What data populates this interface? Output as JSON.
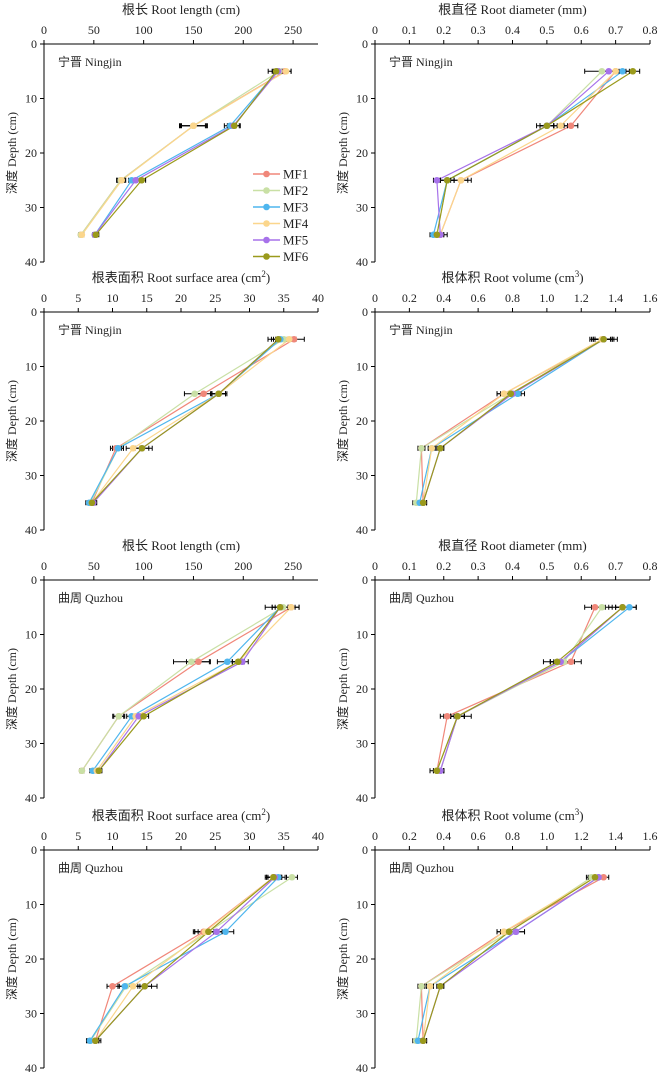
{
  "chart_data": [
    {
      "type": "line",
      "panel": "top-left",
      "site": "宁晋 Ningjin",
      "title": "根长 Root length (cm)",
      "xlabel": "根长 Root length (cm)",
      "ylabel": "深度 Depth (cm)",
      "xlim": [
        0,
        275
      ],
      "xticks": [
        "0",
        "50",
        "100",
        "150",
        "200",
        "250"
      ],
      "xtick_values": [
        0,
        50,
        100,
        150,
        200,
        250
      ],
      "ylim": [
        0,
        40
      ],
      "yticks": [
        "0",
        "10",
        "20",
        "30",
        "40"
      ],
      "ytick_values": [
        0,
        10,
        20,
        30,
        40
      ],
      "depth": [
        5,
        15,
        25,
        35
      ],
      "legend": "right",
      "series": [
        {
          "name": "MF1",
          "values": [
            242,
            150,
            77,
            37
          ],
          "err": [
            6,
            14,
            4,
            2
          ]
        },
        {
          "name": "MF2",
          "values": [
            236,
            150,
            77,
            37
          ],
          "err": [
            5,
            13,
            4,
            2
          ]
        },
        {
          "name": "MF3",
          "values": [
            234,
            187,
            88,
            51
          ],
          "err": [
            5,
            6,
            3,
            2
          ]
        },
        {
          "name": "MF4",
          "values": [
            243,
            150,
            78,
            38
          ],
          "err": [
            5,
            12,
            4,
            2
          ]
        },
        {
          "name": "MF5",
          "values": [
            235,
            190,
            92,
            51
          ],
          "err": [
            5,
            6,
            4,
            2
          ]
        },
        {
          "name": "MF6",
          "values": [
            233,
            191,
            98,
            52
          ],
          "err": [
            8,
            6,
            4,
            3
          ]
        }
      ]
    },
    {
      "type": "line",
      "panel": "top-right",
      "site": "宁晋 Ningjin",
      "title": "根直径 Root diameter (mm)",
      "xlabel": "根直径 Root diameter (mm)",
      "ylabel": "深度 Depth (cm)",
      "xlim": [
        0,
        0.8
      ],
      "xticks": [
        "0",
        "0.1",
        "0.2",
        "0.3",
        "0.4",
        "0.5",
        "0.6",
        "0.7",
        "0.8"
      ],
      "xtick_values": [
        0,
        0.1,
        0.2,
        0.3,
        0.4,
        0.5,
        0.6,
        0.7,
        0.8
      ],
      "ylim": [
        0,
        40
      ],
      "yticks": [
        "0",
        "10",
        "20",
        "30",
        "40"
      ],
      "ytick_values": [
        0,
        10,
        20,
        30,
        40
      ],
      "depth": [
        5,
        15,
        25,
        35
      ],
      "series": [
        {
          "name": "MF1",
          "values": [
            0.7,
            0.57,
            0.25,
            0.19
          ],
          "err": [
            0.02,
            0.02,
            0.02,
            0.01
          ]
        },
        {
          "name": "MF2",
          "values": [
            0.66,
            0.5,
            0.21,
            0.18
          ],
          "err": [
            0.05,
            0.02,
            0.02,
            0.01
          ]
        },
        {
          "name": "MF3",
          "values": [
            0.72,
            0.5,
            0.21,
            0.17
          ],
          "err": [
            0.02,
            0.02,
            0.02,
            0.01
          ]
        },
        {
          "name": "MF4",
          "values": [
            0.7,
            0.54,
            0.25,
            0.19
          ],
          "err": [
            0.02,
            0.02,
            0.03,
            0.01
          ]
        },
        {
          "name": "MF5",
          "values": [
            0.68,
            0.5,
            0.18,
            0.19
          ],
          "err": [
            0.02,
            0.02,
            0.01,
            0.02
          ]
        },
        {
          "name": "MF6",
          "values": [
            0.75,
            0.5,
            0.21,
            0.18
          ],
          "err": [
            0.02,
            0.03,
            0.02,
            0.01
          ]
        }
      ]
    },
    {
      "type": "line",
      "panel": "row2-left",
      "site": "宁晋 Ningjin",
      "title": "根表面积 Root surface area (cm²)",
      "xlabel": "根表面积 Root surface area (cm²)",
      "ylabel": "深度 Depth (cm)",
      "xlim": [
        0,
        40
      ],
      "xticks": [
        "0",
        "5",
        "10",
        "15",
        "20",
        "25",
        "30",
        "35",
        "40"
      ],
      "xtick_values": [
        0,
        5,
        10,
        15,
        20,
        25,
        30,
        35,
        40
      ],
      "ylim": [
        0,
        40
      ],
      "yticks": [
        "0",
        "10",
        "20",
        "30",
        "40"
      ],
      "ytick_values": [
        0,
        10,
        20,
        30,
        40
      ],
      "depth": [
        5,
        15,
        25,
        35
      ],
      "series": [
        {
          "name": "MF1",
          "values": [
            36.5,
            23.3,
            10.5,
            7.0
          ],
          "err": [
            1.5,
            1.2,
            0.8,
            0.5
          ]
        },
        {
          "name": "MF2",
          "values": [
            35.0,
            22.0,
            10.8,
            6.8
          ],
          "err": [
            1.2,
            1.5,
            0.8,
            0.5
          ]
        },
        {
          "name": "MF3",
          "values": [
            34.5,
            25.5,
            10.8,
            6.6
          ],
          "err": [
            1.0,
            1.0,
            0.8,
            0.5
          ]
        },
        {
          "name": "MF4",
          "values": [
            35.8,
            25.5,
            13.0,
            7.0
          ],
          "err": [
            1.0,
            1.0,
            1.0,
            0.5
          ]
        },
        {
          "name": "MF5",
          "values": [
            34.2,
            25.5,
            14.3,
            7.2
          ],
          "err": [
            1.0,
            1.0,
            1.0,
            0.5
          ]
        },
        {
          "name": "MF6",
          "values": [
            34.2,
            25.5,
            14.3,
            7.0
          ],
          "err": [
            1.5,
            1.2,
            1.5,
            0.6
          ]
        }
      ]
    },
    {
      "type": "line",
      "panel": "row2-right",
      "site": "宁晋 Ningjin",
      "title": "根体积 Root volume (cm³)",
      "xlabel": "根体积 Root volume (cm³)",
      "ylabel": "深度 Depth (cm)",
      "xlim": [
        0,
        1.6
      ],
      "xticks": [
        "0",
        "0.2",
        "0.4",
        "0.6",
        "0.8",
        "1.0",
        "1.2",
        "1.4",
        "1.6"
      ],
      "xtick_values": [
        0,
        0.2,
        0.4,
        0.6,
        0.8,
        1.0,
        1.2,
        1.4,
        1.6
      ],
      "ylim": [
        0,
        40
      ],
      "yticks": [
        "0",
        "10",
        "20",
        "30",
        "40"
      ],
      "ytick_values": [
        0,
        10,
        20,
        30,
        40
      ],
      "depth": [
        5,
        15,
        25,
        35
      ],
      "series": [
        {
          "name": "MF1",
          "values": [
            1.33,
            0.75,
            0.27,
            0.28
          ],
          "err": [
            0.06,
            0.04,
            0.02,
            0.02
          ]
        },
        {
          "name": "MF2",
          "values": [
            1.32,
            0.79,
            0.27,
            0.24
          ],
          "err": [
            0.06,
            0.04,
            0.02,
            0.02
          ]
        },
        {
          "name": "MF3",
          "values": [
            1.33,
            0.83,
            0.33,
            0.26
          ],
          "err": [
            0.05,
            0.04,
            0.02,
            0.02
          ]
        },
        {
          "name": "MF4",
          "values": [
            1.32,
            0.75,
            0.33,
            0.28
          ],
          "err": [
            0.05,
            0.04,
            0.02,
            0.02
          ]
        },
        {
          "name": "MF5",
          "values": [
            1.33,
            0.8,
            0.38,
            0.28
          ],
          "err": [
            0.05,
            0.04,
            0.02,
            0.02
          ]
        },
        {
          "name": "MF6",
          "values": [
            1.33,
            0.79,
            0.38,
            0.28
          ],
          "err": [
            0.08,
            0.06,
            0.02,
            0.02
          ]
        }
      ]
    },
    {
      "type": "line",
      "panel": "row3-left",
      "site": "曲周 Quzhou",
      "title": "根长 Root length (cm)",
      "xlabel": "根长 Root length (cm)",
      "ylabel": "深度 Depth (cm)",
      "xlim": [
        0,
        275
      ],
      "xticks": [
        "0",
        "50",
        "100",
        "150",
        "200",
        "250"
      ],
      "xtick_values": [
        0,
        50,
        100,
        150,
        200,
        250
      ],
      "ylim": [
        0,
        40
      ],
      "yticks": [
        "0",
        "10",
        "20",
        "30",
        "40"
      ],
      "ytick_values": [
        0,
        10,
        20,
        30,
        40
      ],
      "depth": [
        5,
        15,
        25,
        35
      ],
      "series": [
        {
          "name": "MF1",
          "values": [
            248,
            155,
            75,
            38
          ],
          "err": [
            8,
            12,
            5,
            2
          ]
        },
        {
          "name": "MF2",
          "values": [
            240,
            148,
            75,
            38
          ],
          "err": [
            8,
            18,
            6,
            2
          ]
        },
        {
          "name": "MF3",
          "values": [
            237,
            184,
            88,
            49
          ],
          "err": [
            8,
            10,
            5,
            3
          ]
        },
        {
          "name": "MF4",
          "values": [
            248,
            195,
            92,
            53
          ],
          "err": [
            8,
            6,
            5,
            3
          ]
        },
        {
          "name": "MF5",
          "values": [
            237,
            199,
            95,
            55
          ],
          "err": [
            8,
            6,
            5,
            3
          ]
        },
        {
          "name": "MF6",
          "values": [
            237,
            195,
            100,
            55
          ],
          "err": [
            15,
            6,
            5,
            3
          ]
        }
      ]
    },
    {
      "type": "line",
      "panel": "row3-right",
      "site": "曲周 Quzhou",
      "title": "根直径 Root diameter (mm)",
      "xlabel": "根直径 Root diameter (mm)",
      "ylabel": "深度 Depth (cm)",
      "xlim": [
        0,
        0.8
      ],
      "xticks": [
        "0",
        "0.1",
        "0.2",
        "0.3",
        "0.4",
        "0.5",
        "0.6",
        "0.7",
        "0.8"
      ],
      "xtick_values": [
        0,
        0.1,
        0.2,
        0.3,
        0.4,
        0.5,
        0.6,
        0.7,
        0.8
      ],
      "ylim": [
        0,
        40
      ],
      "yticks": [
        "0",
        "10",
        "20",
        "30",
        "40"
      ],
      "ytick_values": [
        0,
        10,
        20,
        30,
        40
      ],
      "depth": [
        5,
        15,
        25,
        35
      ],
      "series": [
        {
          "name": "MF1",
          "values": [
            0.64,
            0.57,
            0.21,
            0.18
          ],
          "err": [
            0.03,
            0.03,
            0.02,
            0.01
          ]
        },
        {
          "name": "MF2",
          "values": [
            0.66,
            0.55,
            0.24,
            0.18
          ],
          "err": [
            0.03,
            0.03,
            0.02,
            0.01
          ]
        },
        {
          "name": "MF3",
          "values": [
            0.74,
            0.54,
            0.24,
            0.19
          ],
          "err": [
            0.02,
            0.03,
            0.02,
            0.01
          ]
        },
        {
          "name": "MF4",
          "values": [
            0.72,
            0.54,
            0.24,
            0.19
          ],
          "err": [
            0.02,
            0.03,
            0.02,
            0.01
          ]
        },
        {
          "name": "MF5",
          "values": [
            0.72,
            0.54,
            0.24,
            0.19
          ],
          "err": [
            0.02,
            0.03,
            0.02,
            0.01
          ]
        },
        {
          "name": "MF6",
          "values": [
            0.72,
            0.53,
            0.24,
            0.18
          ],
          "err": [
            0.04,
            0.04,
            0.04,
            0.02
          ]
        }
      ]
    },
    {
      "type": "line",
      "panel": "row4-left",
      "site": "曲周 Quzhou",
      "title": "根表面积 Root surface area (cm²)",
      "xlabel": "根表面积 Root surface area (cm²)",
      "ylabel": "深度 Depth (cm)",
      "xlim": [
        0,
        40
      ],
      "xticks": [
        "0",
        "5",
        "10",
        "15",
        "20",
        "25",
        "30",
        "35",
        "40"
      ],
      "xtick_values": [
        0,
        5,
        10,
        15,
        20,
        25,
        30,
        35,
        40
      ],
      "ylim": [
        0,
        40
      ],
      "yticks": [
        "0",
        "10",
        "20",
        "30",
        "40"
      ],
      "ytick_values": [
        0,
        10,
        20,
        30,
        40
      ],
      "depth": [
        5,
        15,
        25,
        35
      ],
      "series": [
        {
          "name": "MF1",
          "values": [
            33.5,
            23.3,
            10.0,
            7.5
          ],
          "err": [
            1.0,
            1.5,
            0.8,
            0.5
          ]
        },
        {
          "name": "MF2",
          "values": [
            36.2,
            24.0,
            12.0,
            6.8
          ],
          "err": [
            0.8,
            1.5,
            1.0,
            0.5
          ]
        },
        {
          "name": "MF3",
          "values": [
            34.2,
            26.5,
            11.8,
            6.7
          ],
          "err": [
            1.0,
            1.2,
            1.0,
            0.5
          ]
        },
        {
          "name": "MF4",
          "values": [
            33.5,
            23.5,
            13.0,
            7.5
          ],
          "err": [
            1.0,
            1.5,
            1.0,
            0.5
          ]
        },
        {
          "name": "MF5",
          "values": [
            33.7,
            25.2,
            14.7,
            7.5
          ],
          "err": [
            1.0,
            1.2,
            1.0,
            0.5
          ]
        },
        {
          "name": "MF6",
          "values": [
            33.5,
            24.0,
            14.7,
            7.5
          ],
          "err": [
            1.2,
            2.0,
            1.8,
            0.8
          ]
        }
      ]
    },
    {
      "type": "line",
      "panel": "row4-right",
      "site": "曲周 Quzhou",
      "title": "根体积 Root volume (cm³)",
      "xlabel": "根体积 Root volume (cm³)",
      "ylabel": "深度 Depth (cm)",
      "xlim": [
        0,
        1.6
      ],
      "xticks": [
        "0",
        "0.2",
        "0.4",
        "0.6",
        "0.8",
        "1.0",
        "1.2",
        "1.4",
        "1.6"
      ],
      "xtick_values": [
        0,
        0.2,
        0.4,
        0.6,
        0.8,
        1.0,
        1.2,
        1.4,
        1.6
      ],
      "ylim": [
        0,
        40
      ],
      "yticks": [
        "0",
        "10",
        "20",
        "30",
        "40"
      ],
      "ytick_values": [
        0,
        10,
        20,
        30,
        40
      ],
      "depth": [
        5,
        15,
        25,
        35
      ],
      "series": [
        {
          "name": "MF1",
          "values": [
            1.33,
            0.75,
            0.27,
            0.28
          ],
          "err": [
            0.03,
            0.04,
            0.02,
            0.02
          ]
        },
        {
          "name": "MF2",
          "values": [
            1.26,
            0.78,
            0.27,
            0.24
          ],
          "err": [
            0.03,
            0.04,
            0.02,
            0.02
          ]
        },
        {
          "name": "MF3",
          "values": [
            1.3,
            0.82,
            0.32,
            0.25
          ],
          "err": [
            0.03,
            0.05,
            0.02,
            0.02
          ]
        },
        {
          "name": "MF4",
          "values": [
            1.28,
            0.75,
            0.32,
            0.28
          ],
          "err": [
            0.03,
            0.04,
            0.02,
            0.02
          ]
        },
        {
          "name": "MF5",
          "values": [
            1.3,
            0.82,
            0.38,
            0.28
          ],
          "err": [
            0.03,
            0.05,
            0.02,
            0.02
          ]
        },
        {
          "name": "MF6",
          "values": [
            1.28,
            0.78,
            0.38,
            0.28
          ],
          "err": [
            0.04,
            0.05,
            0.02,
            0.02
          ]
        }
      ]
    }
  ],
  "legend": {
    "items": [
      {
        "name": "MF1",
        "color": "#f0877a"
      },
      {
        "name": "MF2",
        "color": "#c9e0a5"
      },
      {
        "name": "MF3",
        "color": "#4fb6ee"
      },
      {
        "name": "MF4",
        "color": "#fbd68c"
      },
      {
        "name": "MF5",
        "color": "#a772ea"
      },
      {
        "name": "MF6",
        "color": "#9a9a1c"
      }
    ]
  }
}
